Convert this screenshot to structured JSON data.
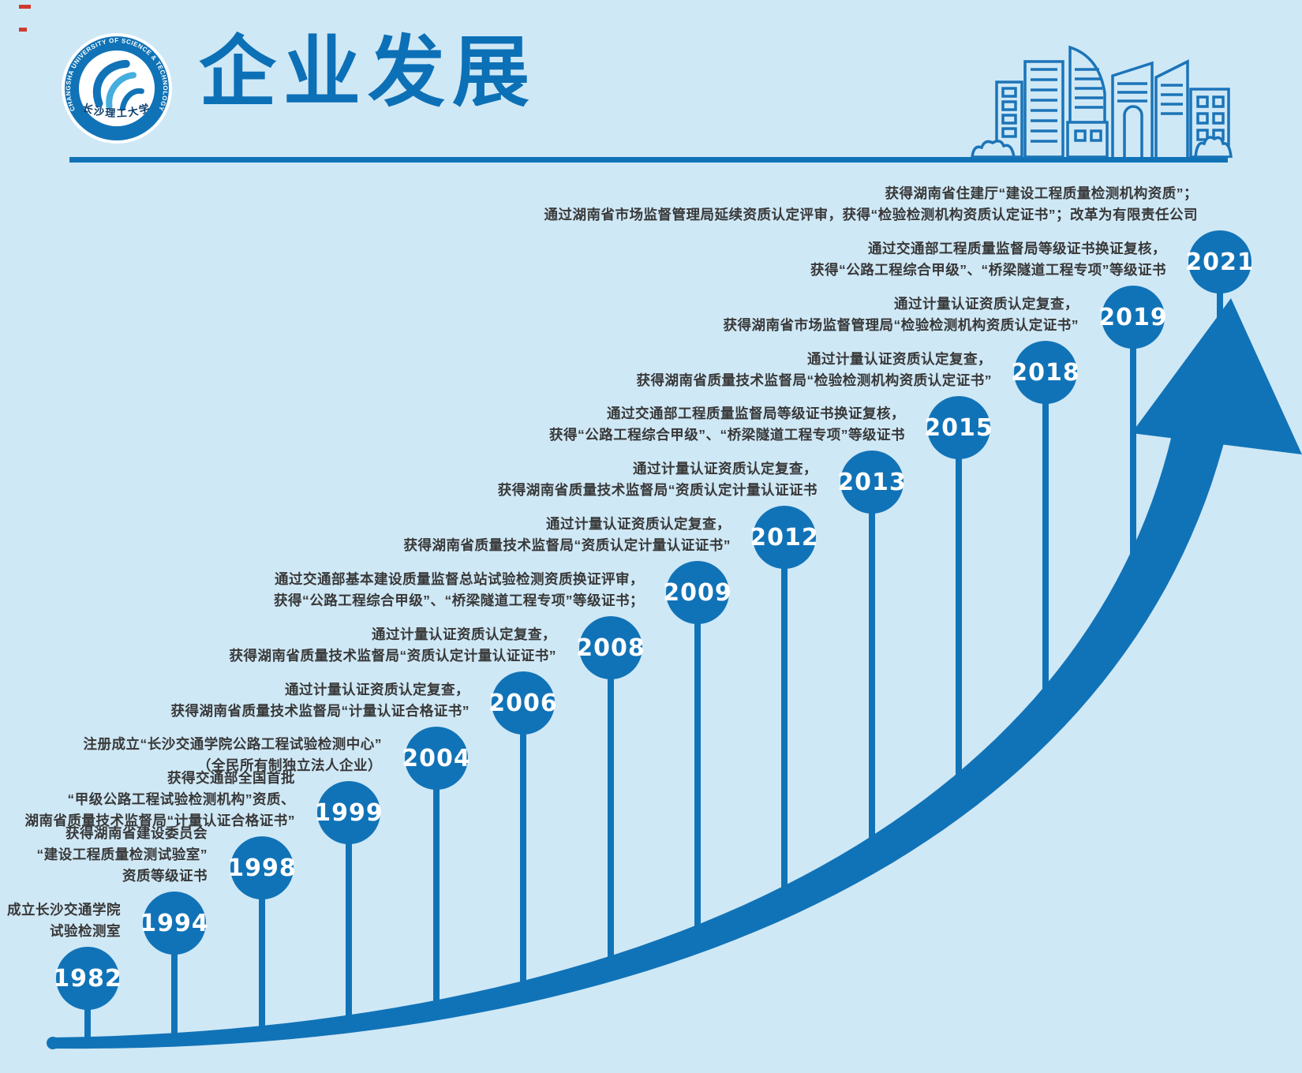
{
  "header": {
    "title": "企业发展",
    "logo": {
      "ring_text": "CHANGSHA UNIVERSITY OF SCIENCE & TECHNOLOGY",
      "university_name": "长沙理工大学"
    }
  },
  "timeline": [
    {
      "year": "1982",
      "lines": [
        "成立长沙交通学院",
        "试验检测室"
      ]
    },
    {
      "year": "1994",
      "lines": [
        "获得湖南省建设委员会",
        "“建设工程质量检测试验室”",
        "资质等级证书"
      ]
    },
    {
      "year": "1998",
      "lines": [
        "获得交通部全国首批",
        "“甲级公路工程试验检测机构”资质、",
        "湖南省质量技术监督局“计量认证合格证书”"
      ]
    },
    {
      "year": "1999",
      "lines": [
        "注册成立“长沙交通学院公路工程试验检测中心”",
        "（全民所有制独立法人企业）"
      ]
    },
    {
      "year": "2004",
      "lines": [
        "通过计量认证资质认定复查，",
        "获得湖南省质量技术监督局“计量认证合格证书”"
      ]
    },
    {
      "year": "2006",
      "lines": [
        "通过计量认证资质认定复查，",
        "获得湖南省质量技术监督局“资质认定计量认证证书”"
      ]
    },
    {
      "year": "2008",
      "lines": [
        "通过交通部基本建设质量监督总站试验检测资质换证评审，",
        "获得“公路工程综合甲级”、“桥梁隧道工程专项”等级证书；"
      ]
    },
    {
      "year": "2009",
      "lines": [
        "通过计量认证资质认定复查，",
        "获得湖南省质量技术监督局“资质认定计量认证证书”"
      ]
    },
    {
      "year": "2012",
      "lines": [
        "通过计量认证资质认定复查，",
        "获得湖南省质量技术监督局“资质认定计量认证证书"
      ]
    },
    {
      "year": "2013",
      "lines": [
        "通过交通部工程质量监督局等级证书换证复核，",
        "获得“公路工程综合甲级”、“桥梁隧道工程专项”等级证书"
      ]
    },
    {
      "year": "2015",
      "lines": [
        "通过计量认证资质认定复查，",
        "获得湖南省质量技术监督局“检验检测机构资质认定证书”"
      ]
    },
    {
      "year": "2018",
      "lines": [
        "通过计量认证资质认定复查，",
        "获得湖南省市场监督管理局“检验检测机构资质认定证书”"
      ]
    },
    {
      "year": "2019",
      "lines": [
        "通过交通部工程质量监督局等级证书换证复核，",
        "获得“公路工程综合甲级”、“桥梁隧道工程专项”等级证书"
      ]
    },
    {
      "year": "2021",
      "lines": [
        "获得湖南省住建厅“建设工程质量检测机构资质”；",
        "通过湖南省市场监督管理局延续资质认定评审，获得“检验检测机构资质认定证书”；改革为有限责任公司"
      ]
    }
  ],
  "colors": {
    "background": "#cfe8f6",
    "primary_blue": "#1173b7",
    "title_blue": "#0c70b6",
    "text_dark": "#383838",
    "logo_accent": "#46aede",
    "mark_red": "#d03a2c"
  }
}
